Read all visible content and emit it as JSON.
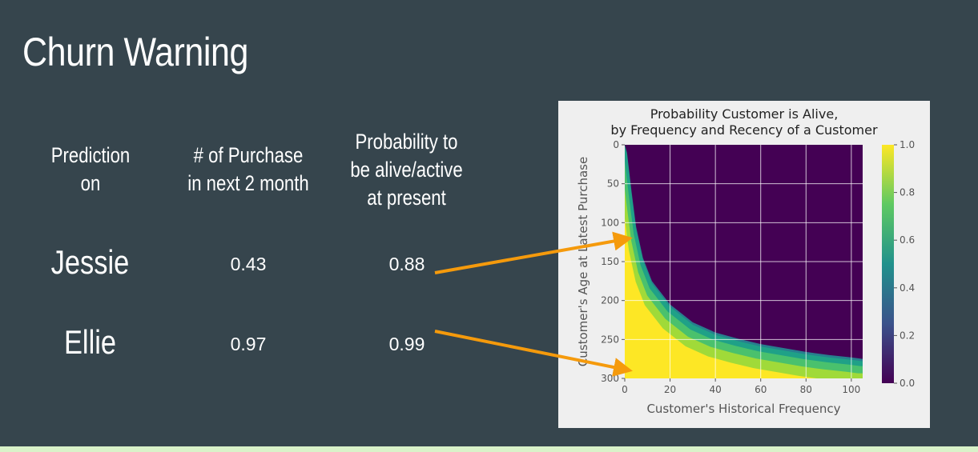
{
  "slide": {
    "title": "Churn Warning",
    "columns": [
      {
        "label": "Prediction\non"
      },
      {
        "label": "# of Purchase\nin next 2 month"
      },
      {
        "label": "Probability to\nbe alive/active\nat present"
      }
    ],
    "rows": [
      {
        "name": "Jessie",
        "purchases": "0.43",
        "probability": "0.88"
      },
      {
        "name": "Ellie",
        "purchases": "0.97",
        "probability": "0.99"
      }
    ]
  },
  "colors": {
    "background": "#36454d",
    "arrow": "#f59a0c",
    "bottom_strip": "#d9f2c9"
  },
  "chart_data": {
    "type": "heatmap",
    "title": "Probability Customer is Alive,\nby Frequency and Recency of a Customer",
    "title_lines": [
      "Probability Customer is Alive,",
      "by Frequency and Recency of a Customer"
    ],
    "xlabel": "Customer's Historical Frequency",
    "ylabel": "Customer's Age at Latest Purchase",
    "xlim": [
      0,
      105
    ],
    "ylim": [
      300,
      0
    ],
    "xticks": [
      0,
      20,
      40,
      60,
      80,
      100
    ],
    "yticks": [
      0,
      50,
      100,
      150,
      200,
      250,
      300
    ],
    "colorbar": {
      "min": 0.0,
      "max": 1.0,
      "ticks": [
        "0.0",
        "0.2",
        "0.4",
        "0.6",
        "0.8",
        "1.0"
      ],
      "colormap": "viridis"
    },
    "grid": true,
    "boundary_curve": {
      "description_x": "frequency",
      "x": [
        1,
        3,
        5,
        8,
        12,
        20,
        30,
        40,
        50,
        60,
        70,
        80,
        90,
        100,
        105
      ],
      "y": [
        10,
        60,
        105,
        145,
        175,
        205,
        228,
        241,
        249,
        256,
        261,
        266,
        270,
        273,
        275
      ]
    },
    "annotations": [
      {
        "customer": "Jessie",
        "frequency": 3,
        "recency": 120
      },
      {
        "customer": "Ellie",
        "frequency": 3,
        "recency": 290
      }
    ]
  }
}
